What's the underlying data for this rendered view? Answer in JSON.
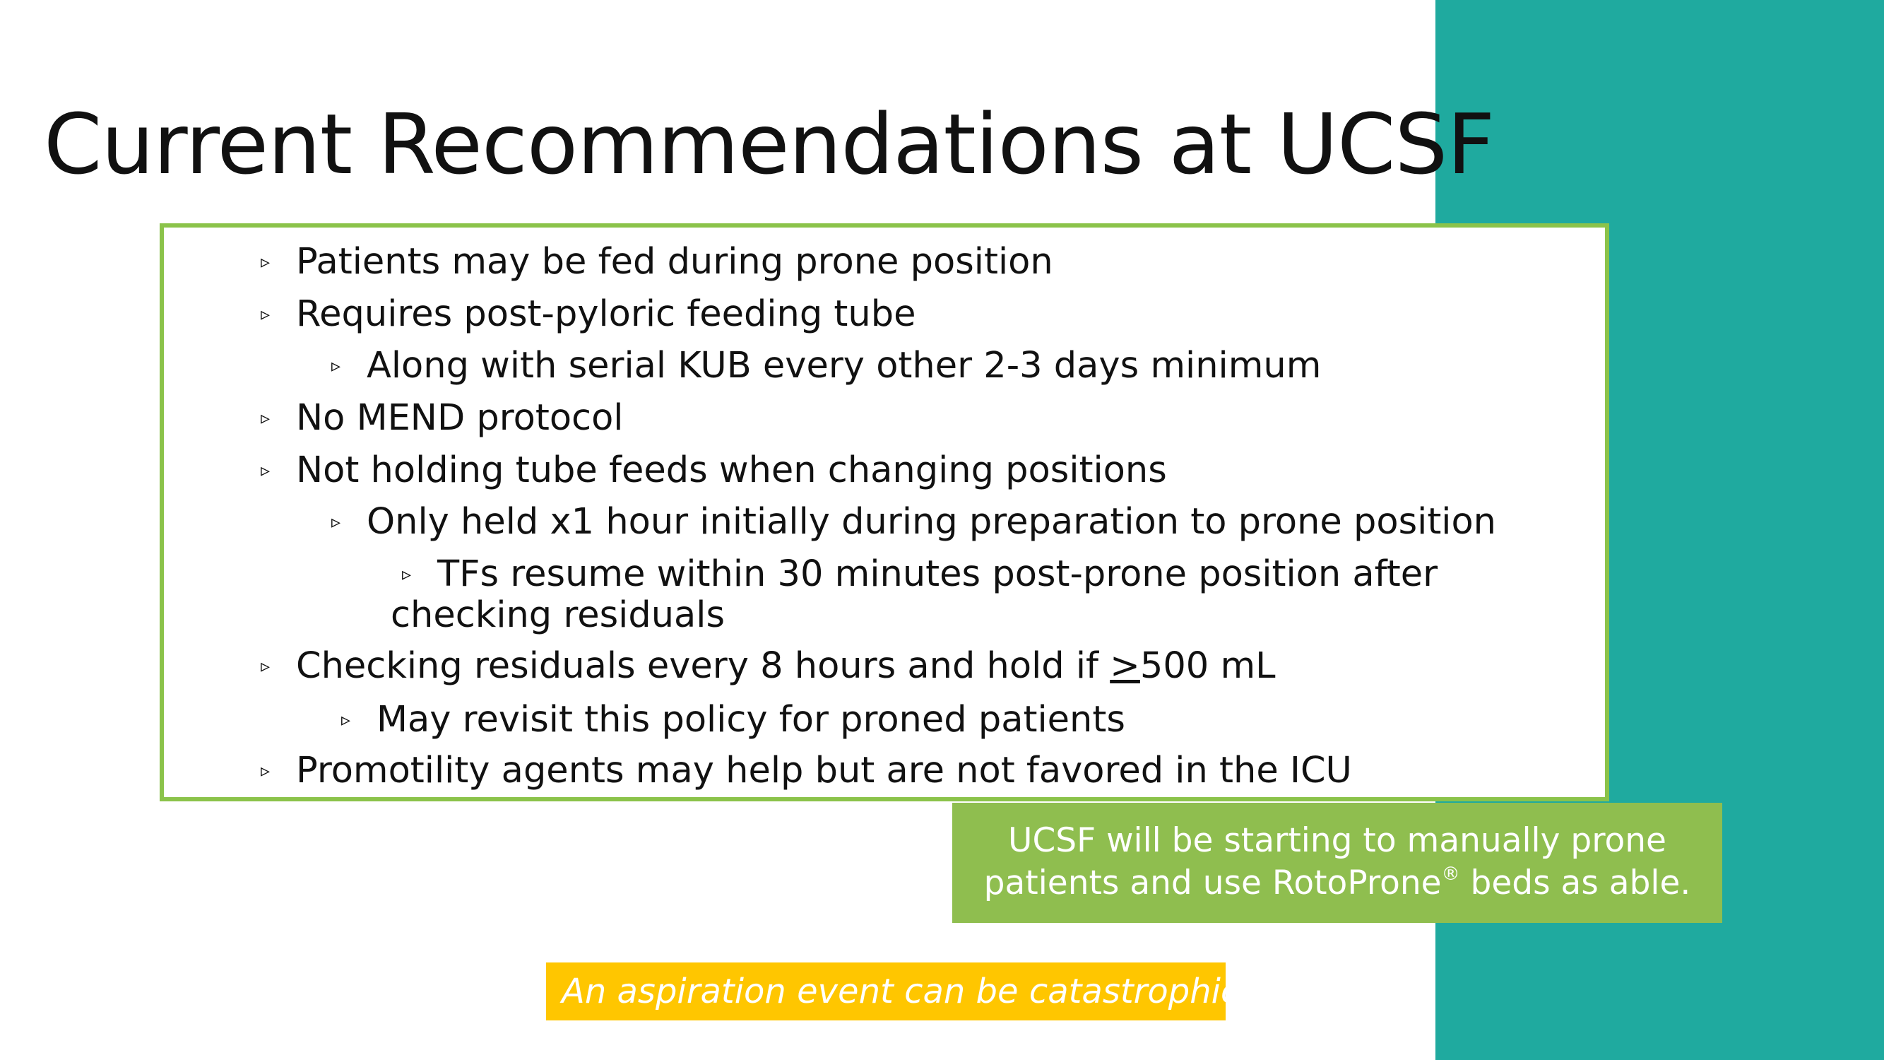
{
  "slide": {
    "title": "Current Recommendations at UCSF"
  },
  "colors": {
    "teal_panel": "#1faa9f",
    "box_border": "#8bc34a",
    "green_note": "#8fbe4f",
    "yellow_note": "#ffc600"
  },
  "bullet_marker": "▹",
  "bullets": [
    {
      "level": 1,
      "text": "Patients may be fed during prone position"
    },
    {
      "level": 1,
      "text": "Requires post-pyloric feeding tube"
    },
    {
      "level": 2,
      "text": "Along with serial KUB every other 2-3 days minimum"
    },
    {
      "level": 1,
      "text": "No MEND protocol"
    },
    {
      "level": 1,
      "text": "Not holding tube feeds when changing positions"
    },
    {
      "level": 2,
      "text": "Only held x1 hour initially during preparation to prone position"
    },
    {
      "level": 3,
      "text": "TFs resume within 30 minutes post-prone position after checking residuals"
    },
    {
      "level": 1,
      "text_before": "Checking residuals every 8 hours and hold if ",
      "text_underlined": ">",
      "text_after": "500 mL"
    },
    {
      "level": 2,
      "text": "May revisit this policy for proned patients"
    },
    {
      "level": 1,
      "text": "Promotility agents may help but are not favored in the ICU"
    }
  ],
  "green_note": {
    "line1": "UCSF will be starting to manually prone",
    "line2_before": "patients and use RotoProne",
    "registered_mark": "®",
    "line2_after": " beds as able."
  },
  "yellow_note": {
    "text": "An aspiration event can be catastrophic!"
  }
}
